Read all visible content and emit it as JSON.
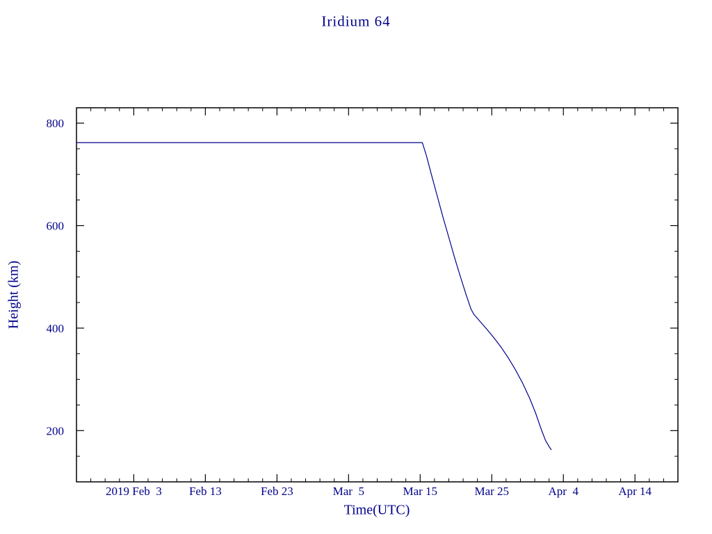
{
  "chart_data": {
    "type": "line",
    "title": "Iridium 64",
    "xlabel": "Time(UTC)",
    "ylabel": "Height (km)",
    "grid": false,
    "legend": false,
    "x_unit": "days from plot start (2019 Jan 26)",
    "x_range_days": [
      0,
      84
    ],
    "x_major_ticks": [
      {
        "day": 8,
        "label": "2019 Feb  3"
      },
      {
        "day": 18,
        "label": "Feb 13"
      },
      {
        "day": 28,
        "label": "Feb 23"
      },
      {
        "day": 38,
        "label": "Mar  5"
      },
      {
        "day": 48,
        "label": "Mar 15"
      },
      {
        "day": 58,
        "label": "Mar 25"
      },
      {
        "day": 68,
        "label": "Apr  4"
      },
      {
        "day": 78,
        "label": "Apr 14"
      }
    ],
    "x_minor_step_days": 2,
    "y_ticks": [
      200,
      400,
      600,
      800
    ],
    "y_minor_step": 50,
    "ylim": [
      100,
      830
    ],
    "series": [
      {
        "name": "Iridium 64 orbital height (km)",
        "points": [
          [
            0,
            762
          ],
          [
            20,
            762
          ],
          [
            40,
            762
          ],
          [
            48.3,
            762
          ],
          [
            48.9,
            735
          ],
          [
            49.6,
            698
          ],
          [
            50.4,
            657
          ],
          [
            51.2,
            616
          ],
          [
            52.0,
            577
          ],
          [
            52.8,
            538
          ],
          [
            53.6,
            501
          ],
          [
            54.4,
            466
          ],
          [
            55.1,
            437
          ],
          [
            55.5,
            427
          ],
          [
            56.3,
            414
          ],
          [
            57.3,
            398
          ],
          [
            58.3,
            381
          ],
          [
            59.3,
            363
          ],
          [
            60.3,
            342
          ],
          [
            61.3,
            319
          ],
          [
            62.3,
            293
          ],
          [
            63.3,
            263
          ],
          [
            64.1,
            235
          ],
          [
            64.9,
            203
          ],
          [
            65.5,
            181
          ],
          [
            66.0,
            169
          ],
          [
            66.3,
            163
          ]
        ]
      }
    ]
  },
  "colors": {
    "text": "#00008B",
    "line": "#00008B",
    "frame": "#000000",
    "background": "#FFFFFF"
  }
}
